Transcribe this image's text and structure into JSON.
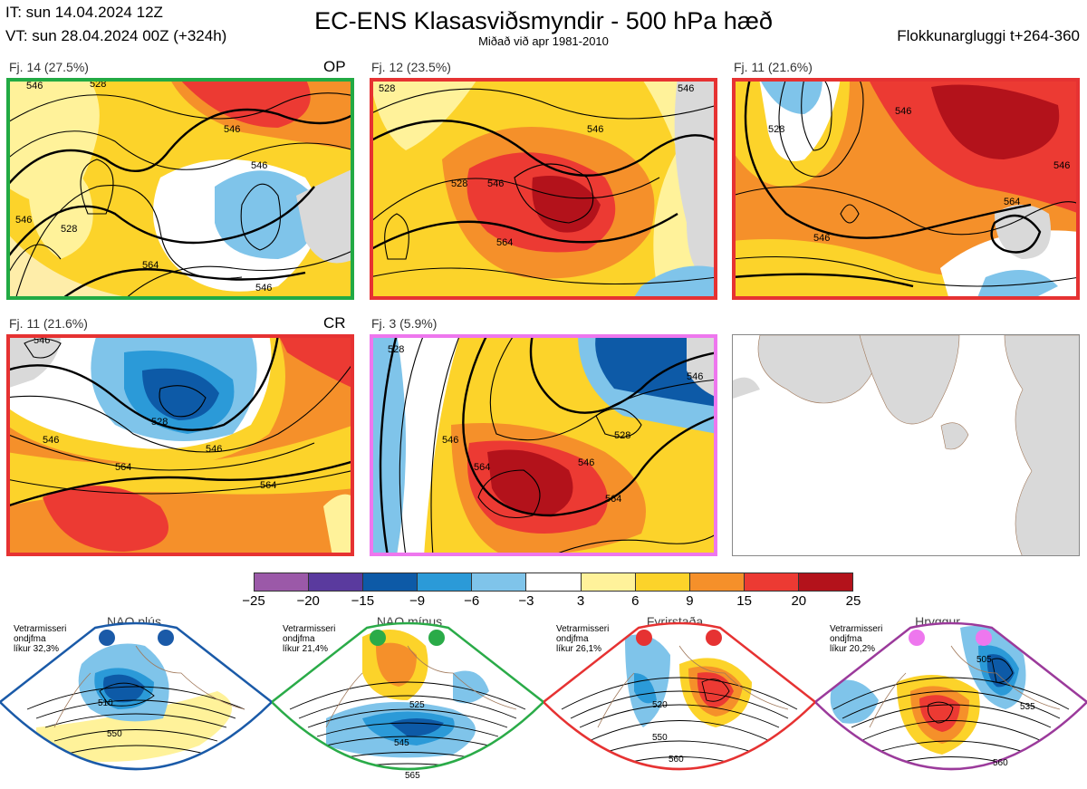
{
  "header": {
    "init_time": "IT: sun 14.04.2024 12Z",
    "valid_time": "VT: sun 28.04.2024 00Z  (+324h)",
    "title": "EC-ENS Klasasviðsmyndir - 500 hPa hæð",
    "subtitle": "Miðað við apr 1981-2010",
    "window": "Flokkunargluggi t+264-360"
  },
  "panels": [
    {
      "label": "Fj. 14 (27.5%)",
      "tag": "OP",
      "frame_color": "#22aa44",
      "contour_labels": [
        "546",
        "528",
        "546",
        "546",
        "528",
        "564",
        "546",
        "546"
      ]
    },
    {
      "label": "Fj. 12 (23.5%)",
      "tag": "",
      "frame_color": "#e63232",
      "contour_labels": [
        "528",
        "546",
        "546",
        "528",
        "564",
        "546"
      ]
    },
    {
      "label": "Fj. 11 (21.6%)",
      "tag": "",
      "frame_color": "#e63232",
      "contour_labels": [
        "528",
        "546",
        "546",
        "564",
        "546"
      ]
    },
    {
      "label": "Fj. 11 (21.6%)",
      "tag": "CR",
      "frame_color": "#e63232",
      "contour_labels": [
        "546",
        "528",
        "546",
        "546",
        "564",
        "564"
      ]
    },
    {
      "label": "Fj. 3 (5.9%)",
      "tag": "",
      "frame_color": "#ee77ee",
      "contour_labels": [
        "528",
        "546",
        "564",
        "528",
        "546",
        "564",
        "546"
      ]
    }
  ],
  "colorbar": {
    "colors": [
      "#9b59a8",
      "#5a3a9e",
      "#0d5aa7",
      "#2b9ad8",
      "#7fc4ea",
      "#ffffff",
      "#fff29a",
      "#fcd32a",
      "#f5902a",
      "#ec3a33",
      "#b3121b"
    ],
    "ticks": [
      "−25",
      "−20",
      "−15",
      "−9",
      "−6",
      "−3",
      "3",
      "6",
      "9",
      "15",
      "20",
      "25"
    ]
  },
  "regimes": [
    {
      "name": "NAO plús",
      "info": [
        "Vetrarmisseri",
        "ondjfma",
        "líkur 32,3%"
      ],
      "color": "#1a5aa8",
      "contour_labels": [
        "510",
        "550"
      ]
    },
    {
      "name": "NAO mínus",
      "info": [
        "Vetrarmisseri",
        "ondjfma",
        "líkur 21,4%"
      ],
      "color": "#2aab48",
      "contour_labels": [
        "525",
        "545",
        "565"
      ]
    },
    {
      "name": "Fyrirstaða",
      "info": [
        "Vetrarmisseri",
        "ondjfma",
        "líkur 26,1%"
      ],
      "color": "#e63232",
      "contour_labels": [
        "520",
        "550",
        "560"
      ]
    },
    {
      "name": "Hryggur",
      "info": [
        "Vetrarmisseri",
        "ondjfma",
        "líkur 20,2%"
      ],
      "color": "#9b3a9b",
      "marker_color": "#ee77ee",
      "contour_labels": [
        "505",
        "535",
        "560"
      ]
    }
  ]
}
